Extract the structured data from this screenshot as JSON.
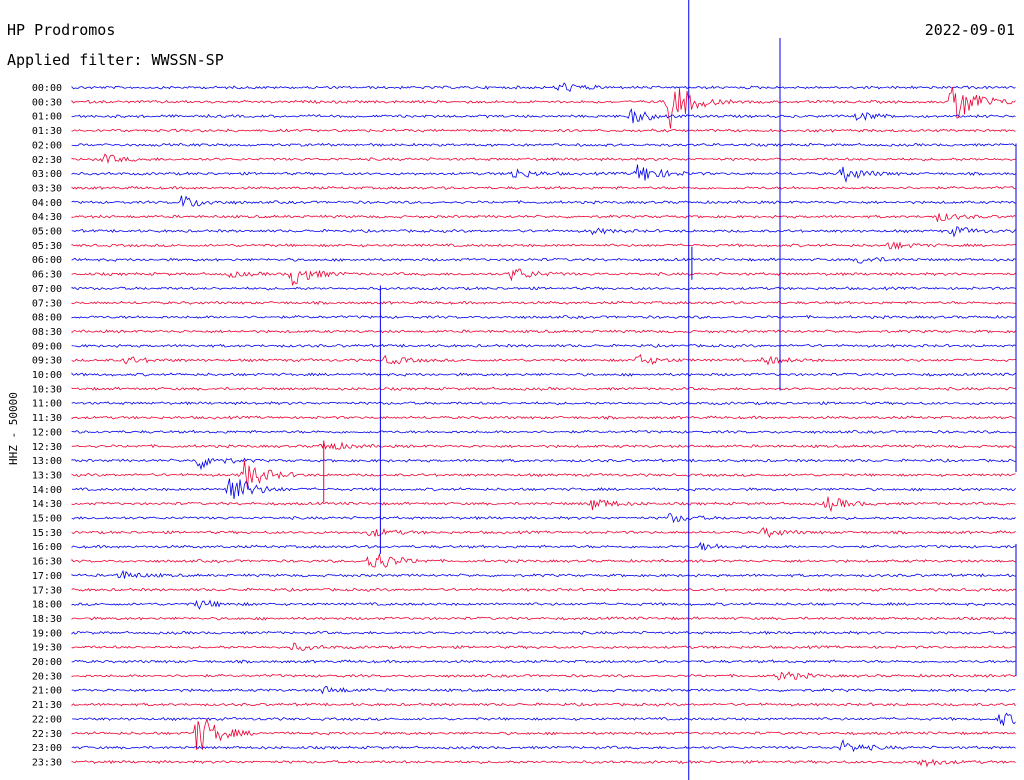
{
  "header": {
    "station": "HP Prodromos",
    "date": "2022-09-01",
    "filter": "Applied filter: WWSSN-SP"
  },
  "channel_label": "HHZ - 50000",
  "colors": {
    "blue": "#0000ee",
    "red": "#ee0033"
  },
  "chart_data": {
    "type": "line",
    "title": "HP Prodromos",
    "ylabel": "HHZ - 50000",
    "rows": [
      "00:00",
      "00:30",
      "01:00",
      "01:30",
      "02:00",
      "02:30",
      "03:00",
      "03:30",
      "04:00",
      "04:30",
      "05:00",
      "05:30",
      "06:00",
      "06:30",
      "07:00",
      "07:30",
      "08:00",
      "08:30",
      "09:00",
      "09:30",
      "10:00",
      "10:30",
      "11:00",
      "11:30",
      "12:00",
      "12:30",
      "13:00",
      "13:30",
      "14:00",
      "14:30",
      "15:00",
      "15:30",
      "16:00",
      "16:30",
      "17:00",
      "17:30",
      "18:00",
      "18:30",
      "19:00",
      "19:30",
      "20:00",
      "20:30",
      "21:00",
      "21:30",
      "22:00",
      "22:30",
      "23:00",
      "23:30"
    ],
    "row_colors": [
      "blue",
      "red"
    ],
    "events": [
      {
        "row": "00:00",
        "minute": 15.5,
        "amp": 0.6
      },
      {
        "row": "00:30",
        "minute": 19.0,
        "amp": 3.0
      },
      {
        "row": "00:30",
        "minute": 28.0,
        "amp": 3.2
      },
      {
        "row": "01:00",
        "minute": 17.8,
        "amp": 0.8
      },
      {
        "row": "01:00",
        "minute": 25.0,
        "amp": 0.5
      },
      {
        "row": "02:30",
        "minute": 1.0,
        "amp": 0.5
      },
      {
        "row": "03:00",
        "minute": 14.0,
        "amp": 0.6
      },
      {
        "row": "03:00",
        "minute": 18.0,
        "amp": 1.2
      },
      {
        "row": "03:00",
        "minute": 24.5,
        "amp": 0.9
      },
      {
        "row": "04:00",
        "minute": 3.5,
        "amp": 0.8
      },
      {
        "row": "04:30",
        "minute": 27.5,
        "amp": 0.5
      },
      {
        "row": "05:00",
        "minute": 28.0,
        "amp": 0.5
      },
      {
        "row": "05:00",
        "minute": 16.5,
        "amp": 0.3
      },
      {
        "row": "05:30",
        "minute": 26.0,
        "amp": 0.4
      },
      {
        "row": "06:00",
        "minute": 25.0,
        "amp": 0.4
      },
      {
        "row": "06:30",
        "minute": 7.0,
        "amp": 1.3
      },
      {
        "row": "06:30",
        "minute": 14.0,
        "amp": 0.8
      },
      {
        "row": "06:30",
        "minute": 5.0,
        "amp": 0.3
      },
      {
        "row": "09:30",
        "minute": 1.7,
        "amp": 0.4
      },
      {
        "row": "09:30",
        "minute": 10.0,
        "amp": 0.5
      },
      {
        "row": "09:30",
        "minute": 18.0,
        "amp": 0.6
      },
      {
        "row": "09:30",
        "minute": 22.0,
        "amp": 0.5
      },
      {
        "row": "12:30",
        "minute": 8.0,
        "amp": 0.6
      },
      {
        "row": "13:00",
        "minute": 4.0,
        "amp": 1.0
      },
      {
        "row": "13:30",
        "minute": 5.5,
        "amp": 1.8
      },
      {
        "row": "14:00",
        "minute": 5.0,
        "amp": 2.0
      },
      {
        "row": "14:30",
        "minute": 16.5,
        "amp": 0.7
      },
      {
        "row": "14:30",
        "minute": 24.0,
        "amp": 0.8
      },
      {
        "row": "15:00",
        "minute": 19.0,
        "amp": 0.5
      },
      {
        "row": "15:30",
        "minute": 9.5,
        "amp": 0.5
      },
      {
        "row": "15:30",
        "minute": 22.0,
        "amp": 0.5
      },
      {
        "row": "16:00",
        "minute": 20.0,
        "amp": 0.4
      },
      {
        "row": "16:30",
        "minute": 9.5,
        "amp": 1.5
      },
      {
        "row": "17:00",
        "minute": 1.5,
        "amp": 0.5
      },
      {
        "row": "18:00",
        "minute": 4.0,
        "amp": 0.5
      },
      {
        "row": "19:30",
        "minute": 7.0,
        "amp": 0.4
      },
      {
        "row": "20:30",
        "minute": 22.5,
        "amp": 0.6
      },
      {
        "row": "21:00",
        "minute": 8.0,
        "amp": 0.4
      },
      {
        "row": "22:00",
        "minute": 29.5,
        "amp": 0.8
      },
      {
        "row": "22:30",
        "minute": 4.0,
        "amp": 2.5
      },
      {
        "row": "23:00",
        "minute": 24.5,
        "amp": 0.7
      },
      {
        "row": "23:30",
        "minute": 27.0,
        "amp": 0.5
      }
    ],
    "spikes": [
      {
        "row": "06:00",
        "minute": 19.7,
        "up": 0.9,
        "down": 1.4
      },
      {
        "row": "06:00",
        "minute": 22.5,
        "up": 0.6,
        "down": 0.6
      },
      {
        "row": "07:00",
        "minute": 9.8,
        "up": 0.2,
        "down": 18.5
      },
      {
        "row": "12:30",
        "minute": 8.0,
        "up": 0.4,
        "down": 3.9
      },
      {
        "row": "16:00",
        "minute": 30.0,
        "up": 0.2,
        "down": 9.0
      },
      {
        "row": "02:00",
        "minute": 30.0,
        "up": 0.1,
        "down": 22.8
      }
    ],
    "marker_line": {
      "minute": 19.6
    },
    "tall_line": {
      "minute": 22.5,
      "from_row": "00:00",
      "to_row": "10:00"
    }
  }
}
